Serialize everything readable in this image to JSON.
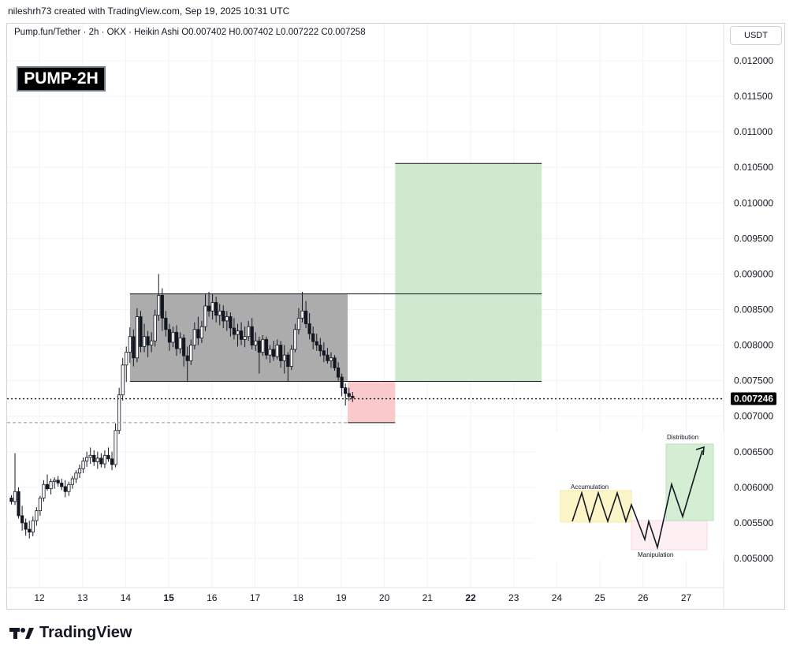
{
  "header": {
    "caption": "nileshrh73 created with TradingView.com, Sep 19, 2025 10:31 UTC",
    "symbol_line": "Pump.fun/Tether · 2h · OKX · Heikin Ashi  O0.007402  H0.007402  L0.007222  C0.007258",
    "badge": "PUMP-2H",
    "currency": "USDT"
  },
  "footer": {
    "brand": "TradingView"
  },
  "chart_data": {
    "type": "candlestick",
    "y_ticks": [
      "0.012000",
      "0.011500",
      "0.011000",
      "0.010500",
      "0.010000",
      "0.009500",
      "0.009000",
      "0.008500",
      "0.008000",
      "0.007500",
      "0.007000",
      "0.006500",
      "0.006000",
      "0.005500",
      "0.005000"
    ],
    "ylim": [
      0.00475,
      0.01225
    ],
    "x_ticks": [
      {
        "label": "12",
        "day": 12,
        "bold": false
      },
      {
        "label": "13",
        "day": 13,
        "bold": false
      },
      {
        "label": "14",
        "day": 14,
        "bold": false
      },
      {
        "label": "15",
        "day": 15,
        "bold": true
      },
      {
        "label": "16",
        "day": 16,
        "bold": false
      },
      {
        "label": "17",
        "day": 17,
        "bold": false
      },
      {
        "label": "18",
        "day": 18,
        "bold": false
      },
      {
        "label": "19",
        "day": 19,
        "bold": false
      },
      {
        "label": "20",
        "day": 20,
        "bold": false
      },
      {
        "label": "21",
        "day": 21,
        "bold": false
      },
      {
        "label": "22",
        "day": 22,
        "bold": true
      },
      {
        "label": "23",
        "day": 23,
        "bold": false
      },
      {
        "label": "24",
        "day": 24,
        "bold": false
      },
      {
        "label": "25",
        "day": 25,
        "bold": false
      },
      {
        "label": "26",
        "day": 26,
        "bold": false
      },
      {
        "label": "27",
        "day": 27,
        "bold": false
      }
    ],
    "xlim": [
      11.3,
      27.9
    ],
    "current_price": {
      "label": "0.007246",
      "value": 0.007246
    },
    "dashed_level": 0.00691,
    "range_box": {
      "x0": 14.1,
      "x1": 19.15,
      "top": 0.00872,
      "bottom": 0.00749,
      "color": "#9e9e9e"
    },
    "target_box": {
      "x0": 20.25,
      "x1": 23.65,
      "top": 0.010555,
      "bottom": 0.00749,
      "color": "#cfe9cf"
    },
    "stop_box": {
      "x0": 19.15,
      "x1": 20.25,
      "top": 0.00749,
      "bottom": 0.00691,
      "color": "#f9c9cc"
    },
    "resistance_line": {
      "x0": 14.1,
      "x1": 23.65,
      "value": 0.00872
    },
    "support_line": {
      "x0": 14.1,
      "x1": 23.65,
      "value": 0.00749
    },
    "target_line": {
      "x0": 20.25,
      "x1": 23.65,
      "value": 0.010555
    },
    "stop_line": {
      "x0": 19.15,
      "x1": 20.25,
      "value": 0.00691
    },
    "candles_x0": 11.35,
    "candles_dx": 0.0833,
    "candles": [
      [
        0.00585,
        0.00589,
        0.00576,
        0.0058
      ],
      [
        0.0058,
        0.00648,
        0.00575,
        0.00594
      ],
      [
        0.00594,
        0.006,
        0.00556,
        0.0056
      ],
      [
        0.0056,
        0.00574,
        0.00539,
        0.0055
      ],
      [
        0.0055,
        0.00556,
        0.00532,
        0.00541
      ],
      [
        0.00541,
        0.00553,
        0.00528,
        0.00537
      ],
      [
        0.00537,
        0.00559,
        0.00531,
        0.00553
      ],
      [
        0.00553,
        0.00572,
        0.00546,
        0.00567
      ],
      [
        0.00567,
        0.00588,
        0.0056,
        0.00585
      ],
      [
        0.00585,
        0.0061,
        0.0058,
        0.00604
      ],
      [
        0.00604,
        0.00618,
        0.00595,
        0.00598
      ],
      [
        0.00598,
        0.00612,
        0.0059,
        0.00608
      ],
      [
        0.00608,
        0.00614,
        0.00598,
        0.0061
      ],
      [
        0.0061,
        0.00616,
        0.00601,
        0.00606
      ],
      [
        0.00606,
        0.00612,
        0.00596,
        0.00601
      ],
      [
        0.00601,
        0.0061,
        0.00586,
        0.00594
      ],
      [
        0.00594,
        0.00608,
        0.00588,
        0.00604
      ],
      [
        0.00604,
        0.00616,
        0.00598,
        0.00612
      ],
      [
        0.00612,
        0.00624,
        0.00606,
        0.0062
      ],
      [
        0.0062,
        0.00632,
        0.00613,
        0.00626
      ],
      [
        0.00626,
        0.00642,
        0.0062,
        0.00637
      ],
      [
        0.00637,
        0.0065,
        0.00629,
        0.00642
      ],
      [
        0.00642,
        0.00656,
        0.00633,
        0.00645
      ],
      [
        0.00645,
        0.00652,
        0.0063,
        0.00636
      ],
      [
        0.00636,
        0.0065,
        0.00626,
        0.00641
      ],
      [
        0.00641,
        0.00648,
        0.00628,
        0.00633
      ],
      [
        0.00633,
        0.00652,
        0.00627,
        0.00645
      ],
      [
        0.00645,
        0.00656,
        0.00636,
        0.0064
      ],
      [
        0.0064,
        0.0065,
        0.00624,
        0.00632
      ],
      [
        0.00632,
        0.0069,
        0.00628,
        0.0068
      ],
      [
        0.0068,
        0.0074,
        0.00675,
        0.0073
      ],
      [
        0.0073,
        0.00782,
        0.00722,
        0.00772
      ],
      [
        0.00772,
        0.00798,
        0.00748,
        0.0079
      ],
      [
        0.0079,
        0.00825,
        0.00775,
        0.00812
      ],
      [
        0.00812,
        0.00822,
        0.0077,
        0.00782
      ],
      [
        0.00782,
        0.00852,
        0.00776,
        0.0084
      ],
      [
        0.0084,
        0.00848,
        0.0079,
        0.00798
      ],
      [
        0.00798,
        0.0083,
        0.0079,
        0.00812
      ],
      [
        0.00812,
        0.0082,
        0.00783,
        0.008
      ],
      [
        0.008,
        0.00818,
        0.0079,
        0.00806
      ],
      [
        0.00806,
        0.0085,
        0.00798,
        0.00842
      ],
      [
        0.00842,
        0.009,
        0.00834,
        0.0087
      ],
      [
        0.0087,
        0.0088,
        0.0082,
        0.00838
      ],
      [
        0.00838,
        0.00848,
        0.00812,
        0.00822
      ],
      [
        0.00822,
        0.0083,
        0.00792,
        0.00804
      ],
      [
        0.00804,
        0.00826,
        0.00797,
        0.00818
      ],
      [
        0.00818,
        0.00828,
        0.00785,
        0.00795
      ],
      [
        0.00795,
        0.00818,
        0.00788,
        0.0081
      ],
      [
        0.0081,
        0.00815,
        0.0077,
        0.00785
      ],
      [
        0.00785,
        0.00798,
        0.00748,
        0.00778
      ],
      [
        0.00778,
        0.00808,
        0.00772,
        0.008
      ],
      [
        0.008,
        0.00832,
        0.00794,
        0.00822
      ],
      [
        0.00822,
        0.0084,
        0.008,
        0.0081
      ],
      [
        0.0081,
        0.00834,
        0.00803,
        0.00826
      ],
      [
        0.00826,
        0.00872,
        0.0082,
        0.00855
      ],
      [
        0.00855,
        0.00875,
        0.0084,
        0.00848
      ],
      [
        0.00848,
        0.00872,
        0.00836,
        0.0086
      ],
      [
        0.0086,
        0.00868,
        0.00832,
        0.00842
      ],
      [
        0.00842,
        0.00858,
        0.00828,
        0.00848
      ],
      [
        0.00848,
        0.00856,
        0.00824,
        0.00834
      ],
      [
        0.00834,
        0.00848,
        0.0082,
        0.0084
      ],
      [
        0.0084,
        0.00846,
        0.00812,
        0.00824
      ],
      [
        0.00824,
        0.00838,
        0.00808,
        0.00815
      ],
      [
        0.00815,
        0.0083,
        0.00798,
        0.0082
      ],
      [
        0.0082,
        0.00832,
        0.008,
        0.00808
      ],
      [
        0.00808,
        0.00826,
        0.00797,
        0.00812
      ],
      [
        0.00812,
        0.00834,
        0.00806,
        0.00826
      ],
      [
        0.00826,
        0.00838,
        0.00794,
        0.008
      ],
      [
        0.008,
        0.00818,
        0.00792,
        0.00806
      ],
      [
        0.00806,
        0.00812,
        0.0076,
        0.0079
      ],
      [
        0.0079,
        0.00814,
        0.00785,
        0.00808
      ],
      [
        0.00808,
        0.00812,
        0.0078,
        0.00786
      ],
      [
        0.00786,
        0.008,
        0.00775,
        0.00794
      ],
      [
        0.00794,
        0.00806,
        0.00778,
        0.00784
      ],
      [
        0.00784,
        0.00808,
        0.0078,
        0.008
      ],
      [
        0.008,
        0.00806,
        0.00768,
        0.00778
      ],
      [
        0.00778,
        0.008,
        0.0076,
        0.00786
      ],
      [
        0.00786,
        0.0079,
        0.00749,
        0.0077
      ],
      [
        0.0077,
        0.008,
        0.00765,
        0.00794
      ],
      [
        0.00794,
        0.0083,
        0.0079,
        0.00822
      ],
      [
        0.00822,
        0.00852,
        0.00815,
        0.00838
      ],
      [
        0.00838,
        0.00875,
        0.00832,
        0.00848
      ],
      [
        0.00848,
        0.00862,
        0.00824,
        0.0083
      ],
      [
        0.0083,
        0.00845,
        0.00808,
        0.00816
      ],
      [
        0.00816,
        0.00826,
        0.00794,
        0.00805
      ],
      [
        0.00805,
        0.00816,
        0.00792,
        0.008
      ],
      [
        0.008,
        0.0081,
        0.00784,
        0.00792
      ],
      [
        0.00792,
        0.00804,
        0.00776,
        0.00786
      ],
      [
        0.00786,
        0.00796,
        0.00774,
        0.00778
      ],
      [
        0.00778,
        0.0079,
        0.00768,
        0.00782
      ],
      [
        0.00782,
        0.00786,
        0.00764,
        0.00768
      ],
      [
        0.00768,
        0.00776,
        0.0075,
        0.00755
      ],
      [
        0.00755,
        0.0076,
        0.00728,
        0.0074
      ],
      [
        0.0074,
        0.00746,
        0.00715,
        0.00732
      ],
      [
        0.00732,
        0.0074,
        0.00722,
        0.00728
      ],
      [
        0.00728,
        0.00734,
        0.0072,
        0.00726
      ]
    ],
    "inset": {
      "labels": {
        "accumulation": "Accumulation",
        "manipulation": "Manipulation",
        "distribution": "Distribution"
      },
      "colors": {
        "accumulation": "#fbf5c8",
        "manipulation": "#fdeef2",
        "distribution": "#d3eed3"
      }
    }
  }
}
